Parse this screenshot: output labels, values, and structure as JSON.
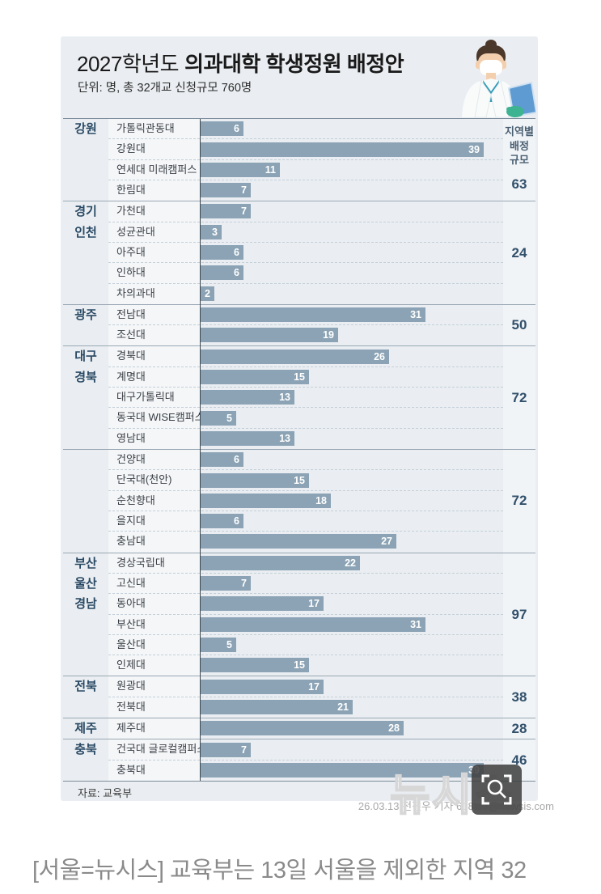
{
  "infographic": {
    "title_prefix": "2027학년도",
    "title_main": "의과대학 학생정원 배정안",
    "subtitle": "단위: 명, 총 32개교 신청규모 760명",
    "summary_header_lines": [
      "지역별",
      "배정",
      "규모"
    ],
    "source": "자료: 교육부",
    "doctor_icon": "doctor-with-mask-and-laptop"
  },
  "chart_data": {
    "type": "bar",
    "orientation": "horizontal",
    "unit": "명",
    "total_schools": 32,
    "total_requested": 760,
    "xlim": [
      0,
      41
    ],
    "value_labels": "inside-bar-end",
    "sections": [
      {
        "region_lines": [
          "강원"
        ],
        "total": 63,
        "items": [
          {
            "name": "가톨릭관동대",
            "value": 6
          },
          {
            "name": "강원대",
            "value": 39
          },
          {
            "name": "연세대 미래캠퍼스",
            "value": 11
          },
          {
            "name": "한림대",
            "value": 7
          }
        ]
      },
      {
        "region_lines": [
          "경기",
          "인천"
        ],
        "total": 24,
        "items": [
          {
            "name": "가천대",
            "value": 7
          },
          {
            "name": "성균관대",
            "value": 3
          },
          {
            "name": "아주대",
            "value": 6
          },
          {
            "name": "인하대",
            "value": 6
          },
          {
            "name": "차의과대",
            "value": 2
          }
        ]
      },
      {
        "region_lines": [
          "광주"
        ],
        "total": 50,
        "items": [
          {
            "name": "전남대",
            "value": 31
          },
          {
            "name": "조선대",
            "value": 19
          }
        ]
      },
      {
        "region_lines": [
          "대구",
          "경북"
        ],
        "total": 72,
        "items": [
          {
            "name": "경북대",
            "value": 26
          },
          {
            "name": "계명대",
            "value": 15
          },
          {
            "name": "대구가톨릭대",
            "value": 13
          },
          {
            "name": "동국대 WISE캠퍼스",
            "value": 5
          },
          {
            "name": "영남대",
            "value": 13
          }
        ]
      },
      {
        "region_lines": [],
        "total": 72,
        "items": [
          {
            "name": "건양대",
            "value": 6
          },
          {
            "name": "단국대(천안)",
            "value": 15
          },
          {
            "name": "순천향대",
            "value": 18
          },
          {
            "name": "을지대",
            "value": 6
          },
          {
            "name": "충남대",
            "value": 27
          }
        ]
      },
      {
        "region_lines": [
          "부산",
          "울산",
          "경남"
        ],
        "total": 97,
        "items": [
          {
            "name": "경상국립대",
            "value": 22
          },
          {
            "name": "고신대",
            "value": 7
          },
          {
            "name": "동아대",
            "value": 17
          },
          {
            "name": "부산대",
            "value": 31
          },
          {
            "name": "울산대",
            "value": 5
          },
          {
            "name": "인제대",
            "value": 15
          }
        ]
      },
      {
        "region_lines": [
          "전북"
        ],
        "total": 38,
        "items": [
          {
            "name": "원광대",
            "value": 17
          },
          {
            "name": "전북대",
            "value": 21
          }
        ]
      },
      {
        "region_lines": [
          "제주"
        ],
        "total": 28,
        "items": [
          {
            "name": "제주대",
            "value": 28
          }
        ]
      },
      {
        "region_lines": [
          "충북"
        ],
        "total": 46,
        "items": [
          {
            "name": "건국대 글로컬캠퍼스",
            "value": 7
          },
          {
            "name": "충북대",
            "value": 39
          }
        ]
      }
    ],
    "colors": {
      "bar": "#8ba3b5",
      "card_bg": "#eaeef2",
      "region_label": "#2a4964",
      "total_number": "#32506b",
      "axis_line": "#3c4650",
      "value_text": "#ffffff"
    }
  },
  "footer": {
    "credit": "26.03.13 전진우 기자 618tue@newsis.com",
    "watermark": "뉴시스",
    "zoom_icon": "magnifier-with-corner-brackets"
  },
  "article": {
    "caption": "[서울=뉴시스] 교육부는 13일 서울을 제외한 지역 32"
  }
}
